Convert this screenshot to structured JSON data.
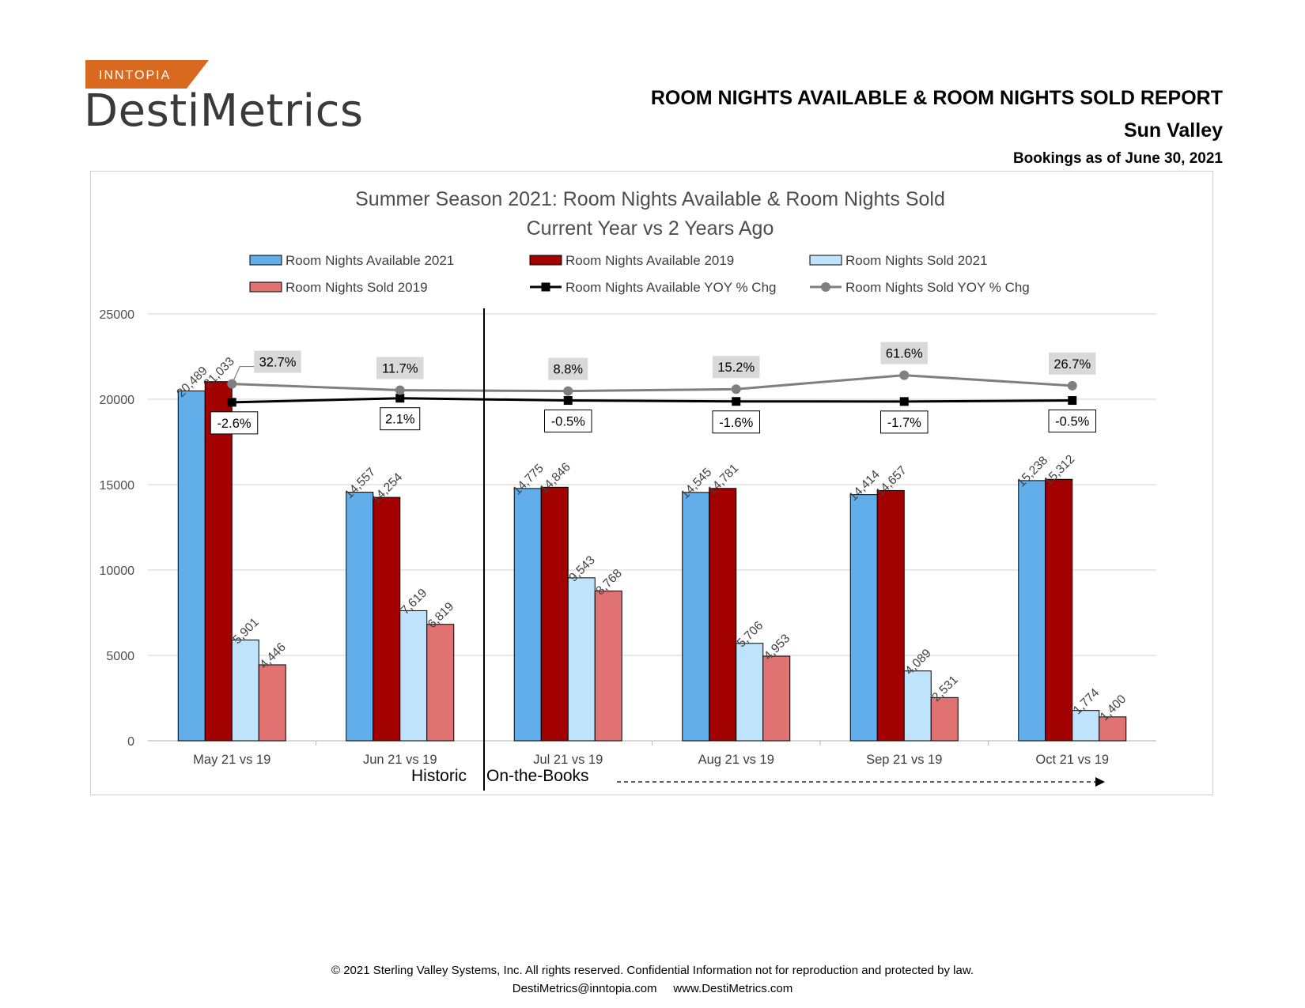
{
  "header": {
    "brand_tag": "INNTOPIA",
    "brand_name": "DestiMetrics",
    "report_title": "ROOM NIGHTS AVAILABLE & ROOM NIGHTS SOLD REPORT",
    "location": "Sun Valley",
    "as_of": "Bookings as of June 30, 2021"
  },
  "colors": {
    "brand_orange": "#d9691e",
    "avail_2021": "#62aeea",
    "avail_2019": "#a30000",
    "sold_2021": "#bfe3fb",
    "sold_2019": "#e07272",
    "avail_yoy": "#000000",
    "sold_yoy": "#7f7f7f"
  },
  "chart_data": {
    "type": "bar",
    "title": "Summer Season 2021: Room Nights Available & Room Nights Sold",
    "subtitle": "Current Year vs 2 Years Ago",
    "categories": [
      "May 21 vs 19",
      "Jun 21 vs 19",
      "Jul 21 vs 19",
      "Aug 21 vs 19",
      "Sep 21 vs 19",
      "Oct 21 vs 19"
    ],
    "ylim": [
      0,
      25000
    ],
    "yticks": [
      "0",
      "5000",
      "10000",
      "15000",
      "20000",
      "25000"
    ],
    "grid": true,
    "legend_position": "top",
    "series": [
      {
        "name": "Room Nights Available 2021",
        "values": [
          20489,
          14557,
          14775,
          14545,
          14414,
          15238
        ],
        "labels": [
          "20,489",
          "14,557",
          "14,775",
          "14,545",
          "14,414",
          "15,238"
        ]
      },
      {
        "name": "Room Nights Available 2019",
        "values": [
          21033,
          14254,
          14846,
          14781,
          14657,
          15312
        ],
        "labels": [
          "21,033",
          "14,254",
          "14,846",
          "14,781",
          "14,657",
          "15,312"
        ]
      },
      {
        "name": "Room Nights Sold 2021",
        "values": [
          5901,
          7619,
          9543,
          5706,
          4089,
          1774
        ],
        "labels": [
          "5,901",
          "7,619",
          "9,543",
          "5,706",
          "4,089",
          "1,774"
        ]
      },
      {
        "name": "Room Nights Sold 2019",
        "values": [
          4446,
          6819,
          8768,
          4953,
          2531,
          1400
        ],
        "labels": [
          "4,446",
          "6,819",
          "8,768",
          "4,953",
          "2,531",
          "1,400"
        ]
      }
    ],
    "line_series": [
      {
        "name": "Room Nights Available YOY % Chg",
        "values": [
          -2.6,
          2.1,
          -0.5,
          -1.6,
          -1.7,
          -0.5
        ],
        "labels": [
          "-2.6%",
          "2.1%",
          "-0.5%",
          "-1.6%",
          "-1.7%",
          "-0.5%"
        ]
      },
      {
        "name": "Room Nights Sold YOY % Chg",
        "values": [
          32.7,
          11.7,
          8.8,
          15.2,
          61.6,
          26.7
        ],
        "labels": [
          "32.7%",
          "11.7%",
          "8.8%",
          "15.2%",
          "61.6%",
          "26.7%"
        ]
      }
    ],
    "annotations": {
      "historic_label": "Historic",
      "otb_label": "On-the-Books"
    }
  },
  "footer": {
    "copyright": "© 2021 Sterling Valley Systems, Inc. All rights reserved.  Confidential Information not for reproduction and protected by law.",
    "contact": "DestiMetrics@inntopia.com     www.DestiMetrics.com"
  }
}
